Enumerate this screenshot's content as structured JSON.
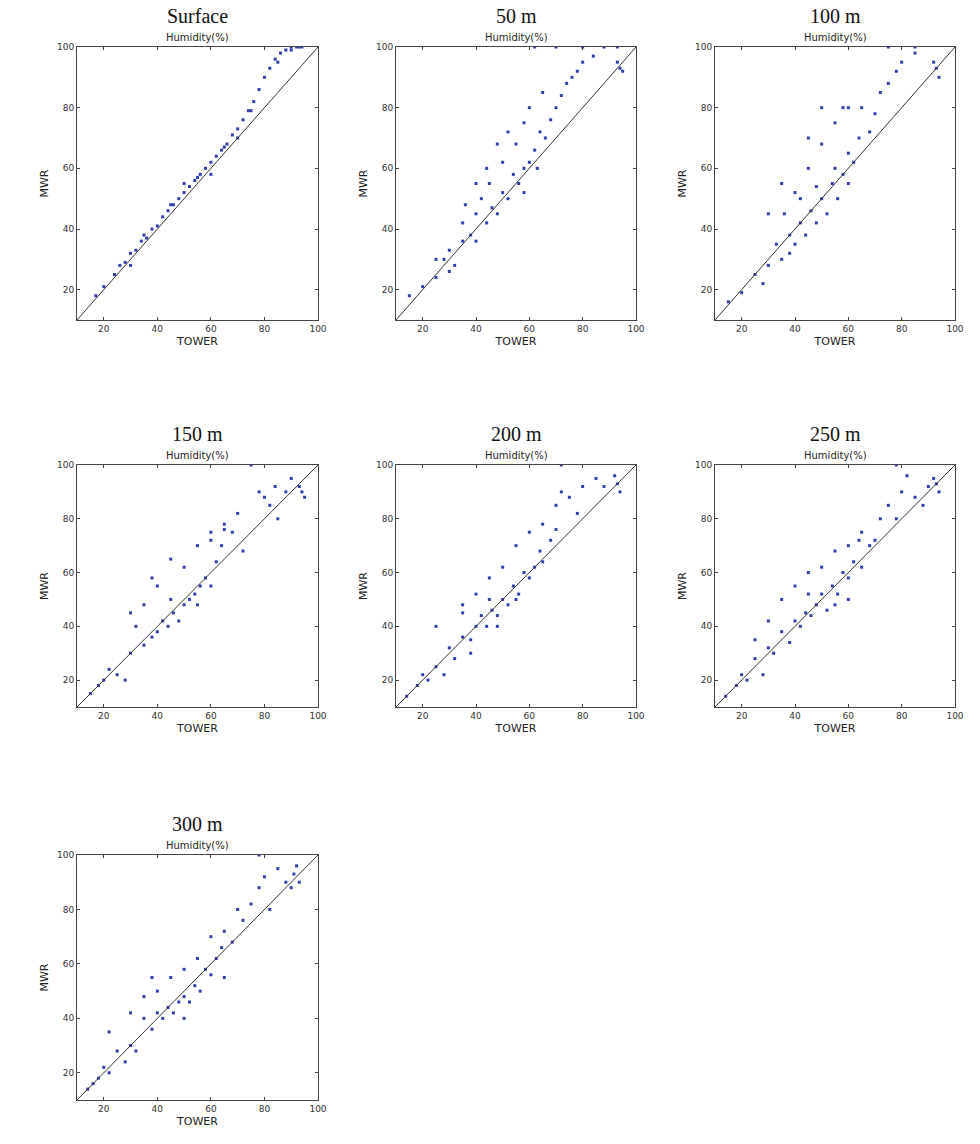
{
  "chart_data": [
    {
      "type": "scatter",
      "title": "Surface",
      "subtitle": "Humidity(%)",
      "x_label": "TOWER",
      "y_label": "MWR",
      "xlim": [
        10,
        100
      ],
      "ylim": [
        10,
        100
      ],
      "xticks": [
        20,
        40,
        60,
        80,
        100
      ],
      "yticks": [
        20,
        40,
        60,
        80,
        100
      ],
      "grid": false,
      "series": [
        {
          "type": "scatter",
          "marker": "square",
          "color": "#2f3fb0",
          "x": [
            17,
            20,
            24,
            26,
            28,
            30,
            30,
            32,
            34,
            35,
            36,
            38,
            40,
            42,
            44,
            45,
            46,
            48,
            50,
            50,
            52,
            54,
            55,
            56,
            58,
            60,
            60,
            62,
            64,
            65,
            66,
            68,
            70,
            70,
            72,
            74,
            75,
            76,
            78,
            80,
            82,
            84,
            85,
            86,
            88,
            90,
            90,
            92,
            93,
            94
          ],
          "values": [
            18,
            21,
            25,
            28,
            29,
            32,
            28,
            33,
            36,
            38,
            37,
            40,
            41,
            44,
            46,
            48,
            48,
            50,
            52,
            55,
            54,
            56,
            57,
            58,
            60,
            62,
            58,
            64,
            66,
            67,
            68,
            71,
            73,
            70,
            76,
            79,
            79,
            82,
            86,
            90,
            93,
            96,
            95,
            98,
            99,
            99,
            100,
            100,
            100,
            100
          ]
        },
        {
          "type": "line",
          "line_style": "solid",
          "color": "#333333",
          "x": [
            10,
            100
          ],
          "values": [
            10,
            100
          ]
        }
      ]
    },
    {
      "type": "scatter",
      "title": "50 m",
      "subtitle": "Humidity(%)",
      "x_label": "TOWER",
      "y_label": "MWR",
      "xlim": [
        10,
        100
      ],
      "ylim": [
        10,
        100
      ],
      "xticks": [
        20,
        40,
        60,
        80,
        100
      ],
      "yticks": [
        20,
        40,
        60,
        80,
        100
      ],
      "grid": false,
      "series": [
        {
          "type": "scatter",
          "marker": "square",
          "color": "#2f3fb0",
          "x": [
            15,
            20,
            25,
            28,
            30,
            32,
            35,
            35,
            38,
            40,
            40,
            42,
            44,
            45,
            46,
            48,
            50,
            50,
            52,
            54,
            55,
            56,
            58,
            58,
            60,
            60,
            62,
            64,
            65,
            66,
            68,
            70,
            72,
            74,
            76,
            78,
            80,
            62,
            70,
            80,
            88,
            93,
            94,
            95,
            93,
            52,
            48,
            44,
            40,
            36,
            30,
            25,
            84,
            58,
            63
          ],
          "values": [
            18,
            21,
            24,
            30,
            33,
            28,
            36,
            42,
            38,
            45,
            36,
            50,
            42,
            55,
            47,
            45,
            52,
            62,
            50,
            58,
            68,
            55,
            60,
            75,
            62,
            80,
            66,
            72,
            85,
            70,
            76,
            80,
            84,
            88,
            90,
            92,
            95,
            100,
            100,
            100,
            100,
            95,
            93,
            92,
            100,
            72,
            68,
            60,
            55,
            48,
            26,
            30,
            97,
            52,
            60
          ]
        },
        {
          "type": "line",
          "line_style": "solid",
          "color": "#333333",
          "x": [
            10,
            100
          ],
          "values": [
            10,
            100
          ]
        }
      ]
    },
    {
      "type": "scatter",
      "title": "100 m",
      "subtitle": "Humidity(%)",
      "x_label": "TOWER",
      "y_label": "MWR",
      "xlim": [
        10,
        100
      ],
      "ylim": [
        10,
        100
      ],
      "xticks": [
        20,
        40,
        60,
        80,
        100
      ],
      "yticks": [
        20,
        40,
        60,
        80,
        100
      ],
      "grid": false,
      "series": [
        {
          "type": "scatter",
          "marker": "square",
          "color": "#2f3fb0",
          "x": [
            15,
            20,
            25,
            28,
            30,
            33,
            35,
            36,
            38,
            40,
            40,
            42,
            44,
            45,
            46,
            48,
            50,
            50,
            52,
            54,
            55,
            56,
            58,
            58,
            60,
            60,
            62,
            65,
            68,
            70,
            72,
            75,
            78,
            80,
            85,
            75,
            85,
            92,
            93,
            94,
            30,
            35,
            45,
            50,
            55,
            42,
            38,
            48,
            64,
            60
          ],
          "values": [
            16,
            19,
            25,
            22,
            28,
            35,
            30,
            45,
            38,
            35,
            52,
            42,
            38,
            60,
            46,
            42,
            50,
            68,
            45,
            55,
            75,
            50,
            58,
            80,
            55,
            65,
            62,
            80,
            72,
            78,
            85,
            88,
            92,
            95,
            98,
            100,
            100,
            95,
            93,
            90,
            45,
            55,
            70,
            80,
            60,
            50,
            32,
            54,
            70,
            80
          ]
        },
        {
          "type": "line",
          "line_style": "solid",
          "color": "#333333",
          "x": [
            10,
            100
          ],
          "values": [
            10,
            100
          ]
        }
      ]
    },
    {
      "type": "scatter",
      "title": "150 m",
      "subtitle": "Humidity(%)",
      "x_label": "TOWER",
      "y_label": "MWR",
      "xlim": [
        10,
        100
      ],
      "ylim": [
        10,
        100
      ],
      "xticks": [
        20,
        40,
        60,
        80,
        100
      ],
      "yticks": [
        20,
        40,
        60,
        80,
        100
      ],
      "grid": false,
      "series": [
        {
          "type": "scatter",
          "marker": "square",
          "color": "#2f3fb0",
          "x": [
            15,
            18,
            20,
            22,
            25,
            28,
            30,
            32,
            35,
            35,
            38,
            40,
            40,
            42,
            44,
            45,
            46,
            48,
            50,
            50,
            52,
            54,
            55,
            56,
            58,
            60,
            60,
            62,
            64,
            65,
            68,
            70,
            72,
            75,
            78,
            80,
            82,
            85,
            90,
            93,
            94,
            95,
            84,
            88,
            60,
            65,
            38,
            30,
            45,
            55
          ],
          "values": [
            15,
            18,
            20,
            24,
            22,
            20,
            30,
            40,
            33,
            48,
            36,
            38,
            55,
            42,
            40,
            50,
            45,
            42,
            48,
            62,
            50,
            52,
            70,
            55,
            58,
            55,
            72,
            64,
            70,
            78,
            75,
            82,
            68,
            100,
            90,
            88,
            85,
            80,
            95,
            92,
            90,
            88,
            92,
            90,
            75,
            76,
            58,
            45,
            65,
            48
          ]
        },
        {
          "type": "line",
          "line_style": "solid",
          "color": "#333333",
          "x": [
            10,
            100
          ],
          "values": [
            10,
            100
          ]
        }
      ]
    },
    {
      "type": "scatter",
      "title": "200 m",
      "subtitle": "Humidity(%)",
      "x_label": "TOWER",
      "y_label": "MWR",
      "xlim": [
        10,
        100
      ],
      "ylim": [
        10,
        100
      ],
      "xticks": [
        20,
        40,
        60,
        80,
        100
      ],
      "yticks": [
        20,
        40,
        60,
        80,
        100
      ],
      "grid": false,
      "series": [
        {
          "type": "scatter",
          "marker": "square",
          "color": "#2f3fb0",
          "x": [
            14,
            18,
            20,
            22,
            25,
            28,
            30,
            32,
            35,
            35,
            38,
            40,
            40,
            42,
            44,
            45,
            46,
            48,
            50,
            50,
            52,
            54,
            55,
            56,
            58,
            60,
            60,
            62,
            64,
            65,
            68,
            70,
            70,
            72,
            75,
            78,
            80,
            85,
            72,
            88,
            93,
            94,
            92,
            25,
            35,
            45,
            55,
            65,
            38,
            48
          ],
          "values": [
            14,
            18,
            22,
            20,
            25,
            22,
            32,
            28,
            36,
            48,
            35,
            40,
            52,
            44,
            40,
            58,
            46,
            44,
            50,
            62,
            48,
            55,
            70,
            52,
            60,
            58,
            75,
            62,
            68,
            78,
            72,
            76,
            85,
            90,
            88,
            82,
            92,
            95,
            100,
            92,
            93,
            90,
            96,
            40,
            45,
            50,
            50,
            64,
            30,
            40
          ]
        },
        {
          "type": "line",
          "line_style": "solid",
          "color": "#333333",
          "x": [
            10,
            100
          ],
          "values": [
            10,
            100
          ]
        }
      ]
    },
    {
      "type": "scatter",
      "title": "250 m",
      "subtitle": "Humidity(%)",
      "x_label": "TOWER",
      "y_label": "MWR",
      "xlim": [
        10,
        100
      ],
      "ylim": [
        10,
        100
      ],
      "xticks": [
        20,
        40,
        60,
        80,
        100
      ],
      "yticks": [
        20,
        40,
        60,
        80,
        100
      ],
      "grid": false,
      "series": [
        {
          "type": "scatter",
          "marker": "square",
          "color": "#2f3fb0",
          "x": [
            14,
            18,
            20,
            22,
            25,
            28,
            30,
            30,
            32,
            35,
            35,
            38,
            40,
            40,
            42,
            44,
            45,
            46,
            48,
            50,
            50,
            52,
            54,
            55,
            56,
            58,
            60,
            60,
            62,
            64,
            65,
            68,
            70,
            72,
            75,
            78,
            78,
            80,
            82,
            85,
            88,
            90,
            92,
            93,
            94,
            25,
            45,
            55,
            65,
            60
          ],
          "values": [
            14,
            18,
            22,
            20,
            28,
            22,
            32,
            42,
            30,
            38,
            50,
            34,
            42,
            55,
            40,
            45,
            60,
            44,
            48,
            52,
            62,
            46,
            55,
            68,
            52,
            60,
            58,
            70,
            64,
            72,
            75,
            70,
            72,
            80,
            85,
            80,
            100,
            90,
            96,
            88,
            85,
            92,
            95,
            93,
            90,
            35,
            52,
            48,
            62,
            50
          ]
        },
        {
          "type": "line",
          "line_style": "solid",
          "color": "#333333",
          "x": [
            10,
            100
          ],
          "values": [
            10,
            100
          ]
        }
      ]
    },
    {
      "type": "scatter",
      "title": "300 m",
      "subtitle": "Humidity(%)",
      "x_label": "TOWER",
      "y_label": "MWR",
      "xlim": [
        10,
        100
      ],
      "ylim": [
        10,
        100
      ],
      "xticks": [
        20,
        40,
        60,
        80,
        100
      ],
      "yticks": [
        20,
        40,
        60,
        80,
        100
      ],
      "grid": false,
      "series": [
        {
          "type": "scatter",
          "marker": "square",
          "color": "#2f3fb0",
          "x": [
            14,
            16,
            18,
            20,
            22,
            22,
            25,
            28,
            30,
            30,
            32,
            35,
            35,
            38,
            40,
            40,
            42,
            44,
            45,
            46,
            48,
            50,
            50,
            52,
            54,
            55,
            56,
            58,
            60,
            60,
            62,
            64,
            65,
            68,
            70,
            72,
            75,
            78,
            78,
            80,
            82,
            85,
            88,
            90,
            91,
            92,
            93,
            38,
            50,
            65
          ],
          "values": [
            14,
            16,
            18,
            22,
            20,
            35,
            28,
            24,
            30,
            42,
            28,
            40,
            48,
            36,
            42,
            50,
            40,
            44,
            55,
            42,
            46,
            48,
            58,
            46,
            52,
            62,
            50,
            58,
            56,
            70,
            62,
            66,
            72,
            68,
            80,
            76,
            82,
            88,
            100,
            92,
            80,
            95,
            90,
            88,
            93,
            96,
            90,
            55,
            40,
            55
          ]
        },
        {
          "type": "line",
          "line_style": "solid",
          "color": "#333333",
          "x": [
            10,
            100
          ],
          "values": [
            10,
            100
          ]
        }
      ]
    }
  ]
}
